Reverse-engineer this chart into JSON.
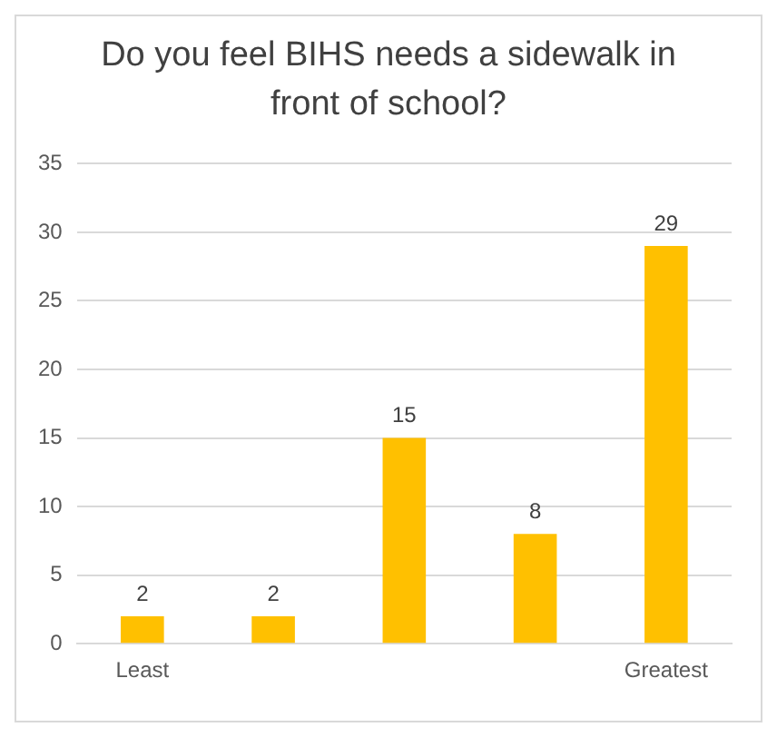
{
  "chart_data": {
    "type": "bar",
    "title": "Do you feel BIHS needs a sidewalk in front of school?",
    "categories": [
      "Least",
      null,
      null,
      null,
      "Greatest"
    ],
    "values": [
      2,
      2,
      15,
      8,
      29
    ],
    "color": "#ffc000",
    "ylim": [
      0,
      35
    ],
    "yticks": [
      0,
      5,
      10,
      15,
      20,
      25,
      30,
      35
    ],
    "grid": "y",
    "data_labels": true,
    "legend": false
  }
}
